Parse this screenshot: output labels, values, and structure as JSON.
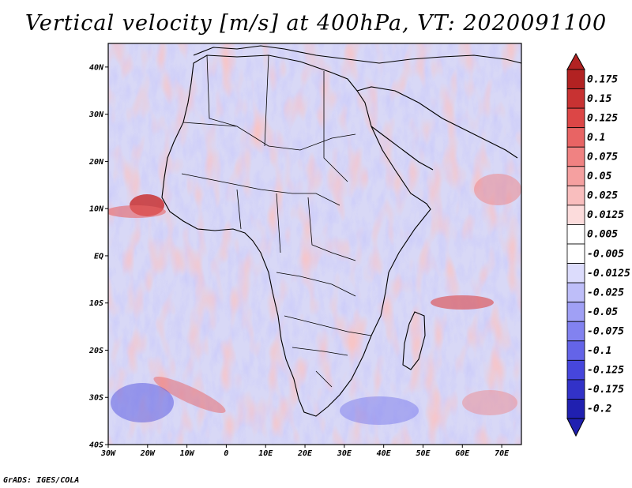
{
  "title": "Vertical velocity [m/s] at 400hPa, VT: 2020091100",
  "credit": "GrADS: IGES/COLA",
  "map": {
    "variable": "Vertical velocity",
    "units": "m/s",
    "level": "400hPa",
    "valid_time": "2020091100",
    "lon_range": [
      -30,
      75
    ],
    "lat_range": [
      -40,
      45
    ],
    "lat_ticks": [
      {
        "value": 40,
        "label": "40N"
      },
      {
        "value": 30,
        "label": "30N"
      },
      {
        "value": 20,
        "label": "20N"
      },
      {
        "value": 10,
        "label": "10N"
      },
      {
        "value": 0,
        "label": "EQ"
      },
      {
        "value": -10,
        "label": "10S"
      },
      {
        "value": -20,
        "label": "20S"
      },
      {
        "value": -30,
        "label": "30S"
      },
      {
        "value": -40,
        "label": "40S"
      }
    ],
    "lon_ticks": [
      {
        "value": -30,
        "label": "30W"
      },
      {
        "value": -20,
        "label": "20W"
      },
      {
        "value": -10,
        "label": "10W"
      },
      {
        "value": 0,
        "label": "0"
      },
      {
        "value": 10,
        "label": "10E"
      },
      {
        "value": 20,
        "label": "20E"
      },
      {
        "value": 30,
        "label": "30E"
      },
      {
        "value": 40,
        "label": "40E"
      },
      {
        "value": 50,
        "label": "50E"
      },
      {
        "value": 60,
        "label": "60E"
      },
      {
        "value": 70,
        "label": "70E"
      }
    ],
    "colors": {
      "strong_ascent": "#c03434",
      "ascent": "#f29a9a",
      "neutral": "#ffffff",
      "descent": "#a8a8f2",
      "strong_descent": "#4848d8"
    }
  },
  "colorbar": {
    "levels": [
      {
        "label": "0.175",
        "color": "#b22222"
      },
      {
        "label": "0.15",
        "color": "#c83232"
      },
      {
        "label": "0.125",
        "color": "#dc4646"
      },
      {
        "label": "0.1",
        "color": "#e86464"
      },
      {
        "label": "0.075",
        "color": "#f08282"
      },
      {
        "label": "0.05",
        "color": "#f5a0a0"
      },
      {
        "label": "0.025",
        "color": "#f9bebe"
      },
      {
        "label": "0.0125",
        "color": "#fcdcdc"
      },
      {
        "label": "0.005",
        "color": "#ffffff"
      },
      {
        "label": "-0.005",
        "color": "#ffffff"
      },
      {
        "label": "-0.0125",
        "color": "#dcdcfc"
      },
      {
        "label": "-0.025",
        "color": "#bebef9"
      },
      {
        "label": "-0.05",
        "color": "#a0a0f5"
      },
      {
        "label": "-0.075",
        "color": "#8282f0"
      },
      {
        "label": "-0.1",
        "color": "#6464e8"
      },
      {
        "label": "-0.125",
        "color": "#4646dc"
      },
      {
        "label": "-0.175",
        "color": "#3232c8"
      },
      {
        "label": "-0.2",
        "color": "#2020b0"
      }
    ]
  }
}
